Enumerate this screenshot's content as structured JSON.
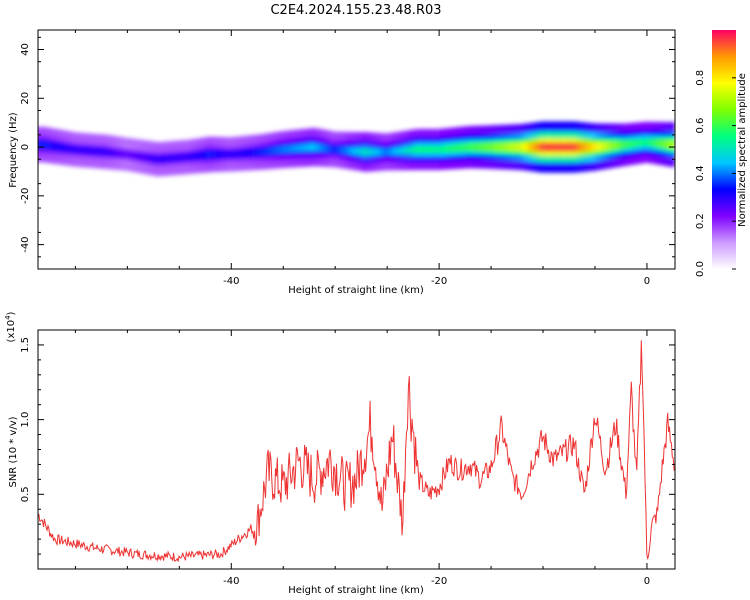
{
  "title": "C2E4.2024.155.23.48.R03",
  "chart_data": [
    {
      "type": "heatmap",
      "xlabel": "Height of straight line (km)",
      "ylabel": "Frequency (Hz)",
      "xlim": [
        -58.6,
        2.7
      ],
      "ylim": [
        -50,
        48
      ],
      "xticks": [
        -40,
        -20,
        0
      ],
      "yticks": [
        -40,
        -20,
        0,
        20,
        40
      ],
      "colorbar": {
        "label": "Normalized spectral amplitude",
        "range": [
          0,
          1
        ],
        "ticks": [
          "0.0",
          "0.2",
          "0.4",
          "0.6",
          "0.8"
        ],
        "colors": [
          "#ffffff",
          "#cc99ff",
          "#7f00ff",
          "#0000ff",
          "#00c8ff",
          "#00ff7f",
          "#7fff00",
          "#ffff00",
          "#ff9900",
          "#ff0066"
        ]
      },
      "ridge": {
        "comment_free_points": true,
        "x": [
          -58,
          -55,
          -52,
          -50,
          -47,
          -44,
          -42,
          -40,
          -37,
          -35,
          -32,
          -30,
          -27,
          -25,
          -22,
          -20,
          -17,
          -15,
          -12,
          -10,
          -7,
          -5,
          -2,
          0,
          2.5
        ],
        "y": [
          1,
          -1,
          -2,
          -3,
          -5,
          -4,
          -3,
          -3,
          -2,
          -1,
          0,
          -1,
          -2,
          -2,
          -1,
          -1,
          0,
          0,
          0,
          0,
          0,
          0,
          1,
          2,
          1
        ],
        "amplitude": [
          0.35,
          0.3,
          0.3,
          0.25,
          0.3,
          0.3,
          0.35,
          0.3,
          0.35,
          0.4,
          0.45,
          0.35,
          0.5,
          0.4,
          0.55,
          0.55,
          0.6,
          0.65,
          0.75,
          0.95,
          0.95,
          0.8,
          0.6,
          0.55,
          0.7
        ]
      }
    },
    {
      "type": "line",
      "xlabel": "Height of straight line (km)",
      "ylabel": "SNR (10 * v/v)",
      "yscale_label": "(x10",
      "yscale_exp": "4",
      "yscale_close": ")",
      "xlim": [
        -58.6,
        2.7
      ],
      "ylim": [
        0,
        1.6
      ],
      "xticks": [
        -40,
        -20,
        0
      ],
      "yticks": [
        "0.5",
        "1.0",
        "1.5"
      ],
      "ytick_values": [
        0.5,
        1.0,
        1.5
      ],
      "color": "#ee3333",
      "x": [
        -58.6,
        -57,
        -55,
        -53,
        -51,
        -49,
        -47,
        -45,
        -43,
        -41,
        -39,
        -37.5,
        -36.5,
        -35,
        -33.5,
        -32,
        -30.5,
        -29,
        -28,
        -26.5,
        -25.5,
        -24.5,
        -23.5,
        -23,
        -22,
        -21,
        -20,
        -19,
        -18,
        -17,
        -16,
        -15,
        -14,
        -13,
        -12,
        -11,
        -10,
        -9,
        -8,
        -7,
        -6,
        -5,
        -4,
        -3,
        -2,
        -1.5,
        -1,
        -0.5,
        0,
        0.5,
        1,
        1.5,
        2,
        2.7
      ],
      "y": [
        0.37,
        0.2,
        0.17,
        0.14,
        0.12,
        0.1,
        0.09,
        0.08,
        0.09,
        0.1,
        0.22,
        0.3,
        0.64,
        0.55,
        0.72,
        0.6,
        0.74,
        0.55,
        0.6,
        0.97,
        0.4,
        0.9,
        0.3,
        1.27,
        0.6,
        0.5,
        0.55,
        0.72,
        0.66,
        0.7,
        0.6,
        0.68,
        0.95,
        0.62,
        0.5,
        0.73,
        0.88,
        0.73,
        0.78,
        0.84,
        0.5,
        1.04,
        0.66,
        0.97,
        0.5,
        1.2,
        0.6,
        1.55,
        0.05,
        0.3,
        0.37,
        0.7,
        0.97,
        0.68
      ]
    }
  ]
}
